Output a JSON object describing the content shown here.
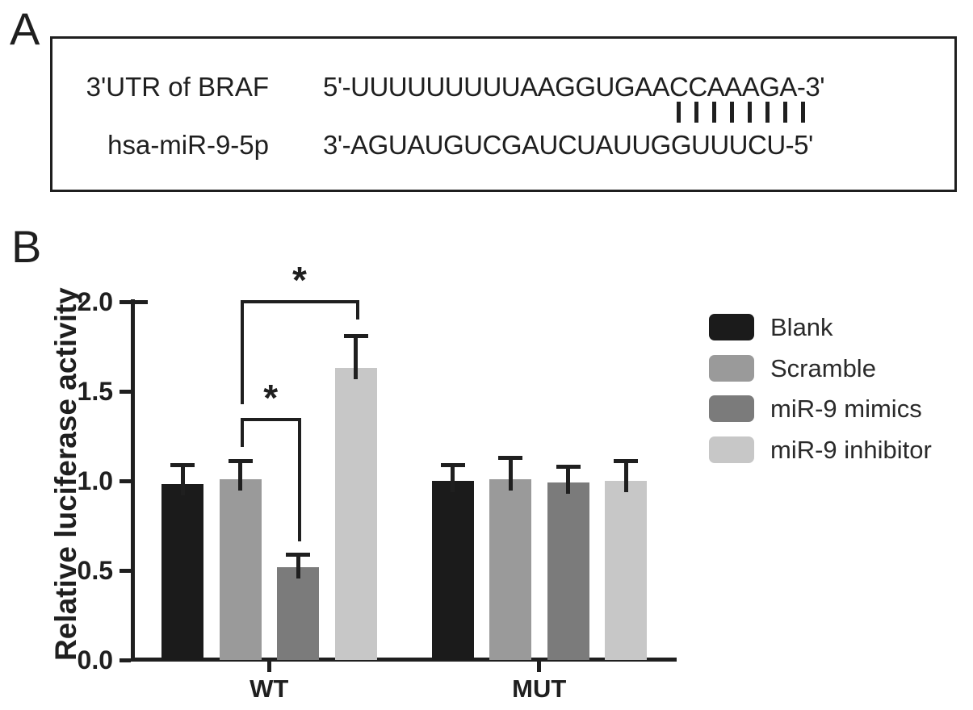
{
  "figure": {
    "background": "#ffffff",
    "ink_color": "#1f1f1f"
  },
  "panel_a": {
    "label": "A",
    "rows": [
      {
        "name": "3'UTR of BRAF",
        "sequence": "5'-UUUUUUUUUAAGGUGAACCAAAGA-3'"
      },
      {
        "name": "hsa-miR-9-5p",
        "sequence": "3'-AGUAUGUCGAUCUAUUGGUUUCU-5'"
      }
    ],
    "match_bar_count": 8
  },
  "panel_b": {
    "label": "B"
  },
  "chart_data": {
    "type": "bar",
    "title": "",
    "xlabel": "",
    "ylabel": "Relative luciferase activity",
    "ylim": [
      0.0,
      2.0
    ],
    "yticks": [
      0.0,
      0.5,
      1.0,
      1.5,
      2.0
    ],
    "ytick_labels": [
      "0.0",
      "0.5",
      "1.0",
      "1.5",
      "2.0"
    ],
    "grid": false,
    "legend_position": "right",
    "categories": [
      "WT",
      "MUT"
    ],
    "series": [
      {
        "name": "Blank",
        "color": "#1b1b1b",
        "values": [
          0.98,
          1.0
        ],
        "errors": [
          0.12,
          0.1
        ]
      },
      {
        "name": "Scramble",
        "color": "#9a9a9a",
        "values": [
          1.01,
          1.01
        ],
        "errors": [
          0.11,
          0.13
        ]
      },
      {
        "name": "miR-9 mimics",
        "color": "#7b7b7b",
        "values": [
          0.52,
          0.99
        ],
        "errors": [
          0.08,
          0.1
        ]
      },
      {
        "name": "miR-9 inhibitor",
        "color": "#c7c7c7",
        "values": [
          1.63,
          1.0
        ],
        "errors": [
          0.19,
          0.12
        ]
      }
    ],
    "significance": [
      {
        "label": "*",
        "group_index": 0,
        "from_series": 1,
        "to_series": 2,
        "y_value": 1.35,
        "from_leg_value": 1.19,
        "to_leg_value": 0.66
      },
      {
        "label": "*",
        "group_index": 0,
        "from_series": 1,
        "to_series": 3,
        "y_value": 2.01,
        "from_leg_value": 1.43,
        "to_leg_value": 1.9
      }
    ]
  }
}
